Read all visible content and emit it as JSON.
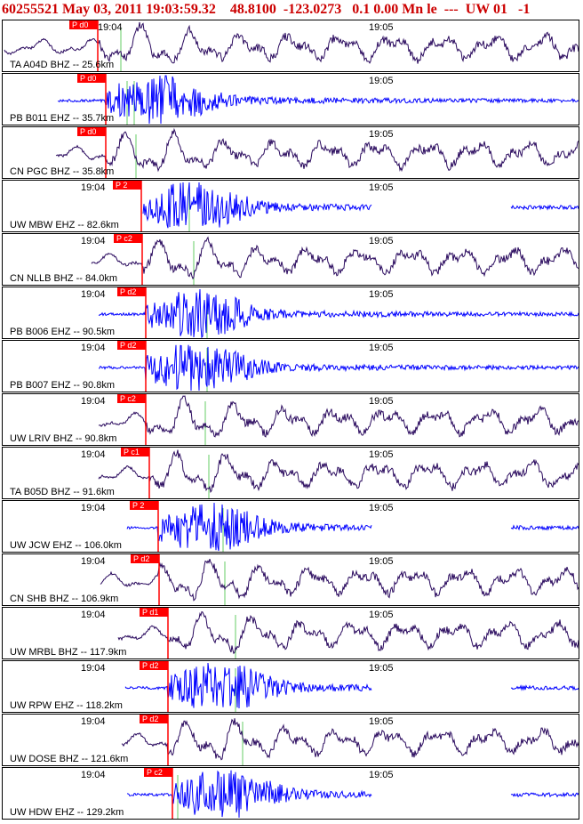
{
  "header": {
    "text": "60255521 May 03, 2011 19:03:59.32    48.8100  -123.0273   0.1 0.00 Mn le  ---  UW 01   -1"
  },
  "colors": {
    "header": "#cc0000",
    "pick_box": "#ff0000",
    "pick_line": "#ff0000",
    "secondary_line": "#66cc66",
    "trace_broadband": "#2a0a5e",
    "trace_short_period": "#0000ff"
  },
  "traces": [
    {
      "label": "TA A04D BHZ -- 25.6km",
      "pick": "P d0",
      "ticks": [
        "19:04",
        "19:05"
      ],
      "kind": "BH",
      "color": "#2a0a5e"
    },
    {
      "label": "PB B011 EHZ -- 35.7km",
      "pick": "P d0",
      "ticks": [
        "19:05"
      ],
      "kind": "EH",
      "color": "#0000ff"
    },
    {
      "label": "CN PGC BHZ -- 35.8km",
      "pick": "P d0",
      "ticks": [
        "19:05"
      ],
      "kind": "BH",
      "color": "#2a0a5e"
    },
    {
      "label": "UW MBW EHZ -- 82.6km",
      "pick": "P 2",
      "ticks": [
        "19:04",
        "19:05"
      ],
      "kind": "EH",
      "color": "#0000ff"
    },
    {
      "label": "CN NLLB BHZ -- 84.0km",
      "pick": "P c2",
      "ticks": [
        "19:04",
        "19:05"
      ],
      "kind": "BH",
      "color": "#2a0a5e"
    },
    {
      "label": "PB B006 EHZ -- 90.5km",
      "pick": "P d2",
      "ticks": [
        "19:04",
        "19:05"
      ],
      "kind": "EH",
      "color": "#0000ff"
    },
    {
      "label": "PB B007 EHZ -- 90.8km",
      "pick": "P d2",
      "ticks": [
        "19:04",
        "19:05"
      ],
      "kind": "EH",
      "color": "#0000ff"
    },
    {
      "label": "UW LRIV BHZ -- 90.8km",
      "pick": "P c2",
      "ticks": [
        "19:04",
        "19:05"
      ],
      "kind": "BH",
      "color": "#2a0a5e"
    },
    {
      "label": "TA B05D BHZ -- 91.6km",
      "pick": "P c1",
      "ticks": [
        "19:04",
        "19:05"
      ],
      "kind": "BH",
      "color": "#2a0a5e"
    },
    {
      "label": "UW JCW EHZ -- 106.0km",
      "pick": "P 2",
      "ticks": [
        "19:04",
        "19:05"
      ],
      "kind": "EH",
      "color": "#0000ff"
    },
    {
      "label": "CN SHB BHZ -- 106.9km",
      "pick": "P d2",
      "ticks": [
        "19:04",
        "19:05"
      ],
      "kind": "BH",
      "color": "#2a0a5e"
    },
    {
      "label": "UW MRBL BHZ -- 117.9km",
      "pick": "P d1",
      "ticks": [
        "19:04",
        "19:05"
      ],
      "kind": "BH",
      "color": "#2a0a5e"
    },
    {
      "label": "UW RPW EHZ -- 118.2km",
      "pick": "P d2",
      "ticks": [
        "19:04",
        "19:05"
      ],
      "kind": "EH",
      "color": "#0000ff"
    },
    {
      "label": "UW DOSE BHZ -- 121.6km",
      "pick": "P d2",
      "ticks": [
        "19:04",
        "19:05"
      ],
      "kind": "BH",
      "color": "#2a0a5e"
    },
    {
      "label": "UW HDW EHZ -- 129.2km",
      "pick": "P c2",
      "ticks": [
        "19:04",
        "19:05"
      ],
      "kind": "EH",
      "color": "#0000ff"
    }
  ]
}
